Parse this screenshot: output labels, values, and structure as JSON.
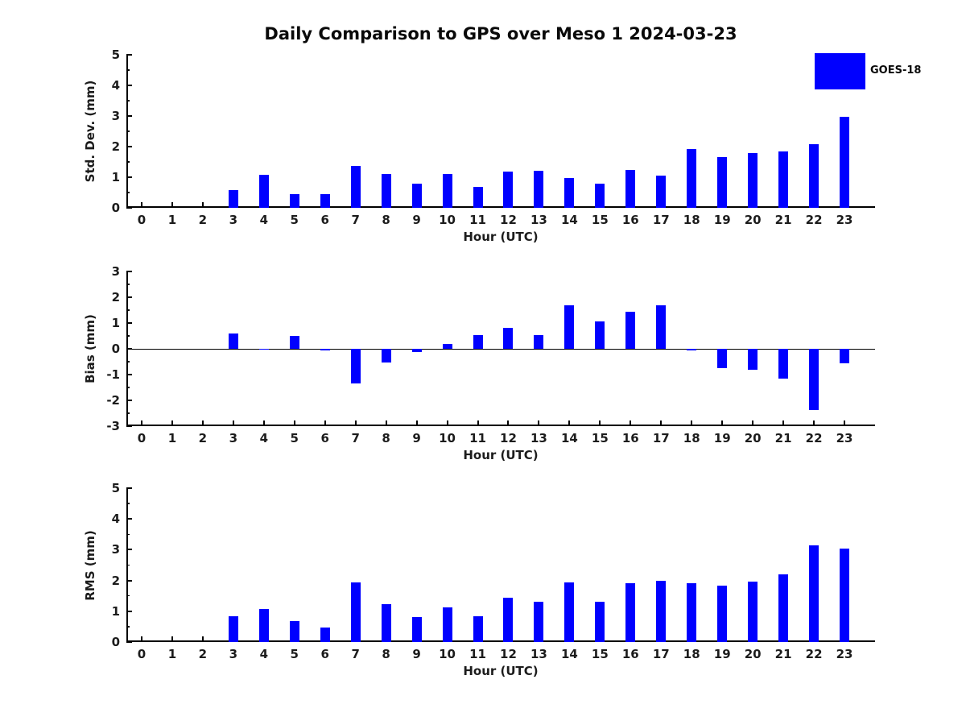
{
  "figure": {
    "title": "Daily Comparison to GPS over Meso 1 2024-03-23",
    "background_color": "#ffffff",
    "text_color": "#1c1c1c"
  },
  "legend": {
    "label": "GOES-18",
    "color": "#0000ff",
    "position": "top-right"
  },
  "chart_data": [
    {
      "type": "bar",
      "name": "std-dev",
      "ylabel": "Std. Dev. (mm)",
      "xlabel": "Hour (UTC)",
      "series_name": "GOES-18",
      "bar_color": "#0000ff",
      "categories": [
        "0",
        "1",
        "2",
        "3",
        "4",
        "5",
        "6",
        "7",
        "8",
        "9",
        "10",
        "11",
        "12",
        "13",
        "14",
        "15",
        "16",
        "17",
        "18",
        "19",
        "20",
        "21",
        "22",
        "23"
      ],
      "values": [
        0,
        0,
        0,
        0.57,
        1.08,
        0.44,
        0.46,
        1.37,
        1.1,
        0.78,
        1.1,
        0.68,
        1.18,
        1.22,
        0.97,
        0.8,
        1.25,
        1.05,
        1.93,
        1.65,
        1.78,
        1.85,
        2.07,
        2.98
      ],
      "ylim": [
        0,
        5
      ],
      "yticks": [
        0,
        1,
        2,
        3,
        4,
        5
      ],
      "minor_tick_step": 0.5,
      "grid": false,
      "zero_line": false
    },
    {
      "type": "bar",
      "name": "bias",
      "ylabel": "Bias (mm)",
      "xlabel": "Hour (UTC)",
      "series_name": "GOES-18",
      "bar_color": "#0000ff",
      "categories": [
        "0",
        "1",
        "2",
        "3",
        "4",
        "5",
        "6",
        "7",
        "8",
        "9",
        "10",
        "11",
        "12",
        "13",
        "14",
        "15",
        "16",
        "17",
        "18",
        "19",
        "20",
        "21",
        "22",
        "23"
      ],
      "values": [
        0,
        0,
        0,
        0.6,
        -0.03,
        0.5,
        -0.07,
        -1.35,
        -0.52,
        -0.12,
        0.2,
        0.52,
        0.82,
        0.52,
        1.7,
        1.05,
        1.43,
        1.7,
        -0.07,
        -0.75,
        -0.8,
        -1.17,
        -2.37,
        -0.55
      ],
      "ylim": [
        -3,
        3
      ],
      "yticks": [
        3,
        2,
        1,
        0,
        -1,
        -2,
        -3
      ],
      "minor_tick_step": 0.5,
      "grid": false,
      "zero_line": true
    },
    {
      "type": "bar",
      "name": "rms",
      "ylabel": "RMS (mm)",
      "xlabel": "Hour (UTC)",
      "series_name": "GOES-18",
      "bar_color": "#0000ff",
      "categories": [
        "0",
        "1",
        "2",
        "3",
        "4",
        "5",
        "6",
        "7",
        "8",
        "9",
        "10",
        "11",
        "12",
        "13",
        "14",
        "15",
        "16",
        "17",
        "18",
        "19",
        "20",
        "21",
        "22",
        "23"
      ],
      "values": [
        0,
        0,
        0,
        0.83,
        1.08,
        0.67,
        0.47,
        1.95,
        1.22,
        0.8,
        1.12,
        0.85,
        1.45,
        1.32,
        1.95,
        1.32,
        1.9,
        2.0,
        1.92,
        1.82,
        1.97,
        2.2,
        3.15,
        3.03
      ],
      "ylim": [
        0,
        5
      ],
      "yticks": [
        0,
        1,
        2,
        3,
        4,
        5
      ],
      "minor_tick_step": 0.5,
      "grid": false,
      "zero_line": false
    }
  ]
}
